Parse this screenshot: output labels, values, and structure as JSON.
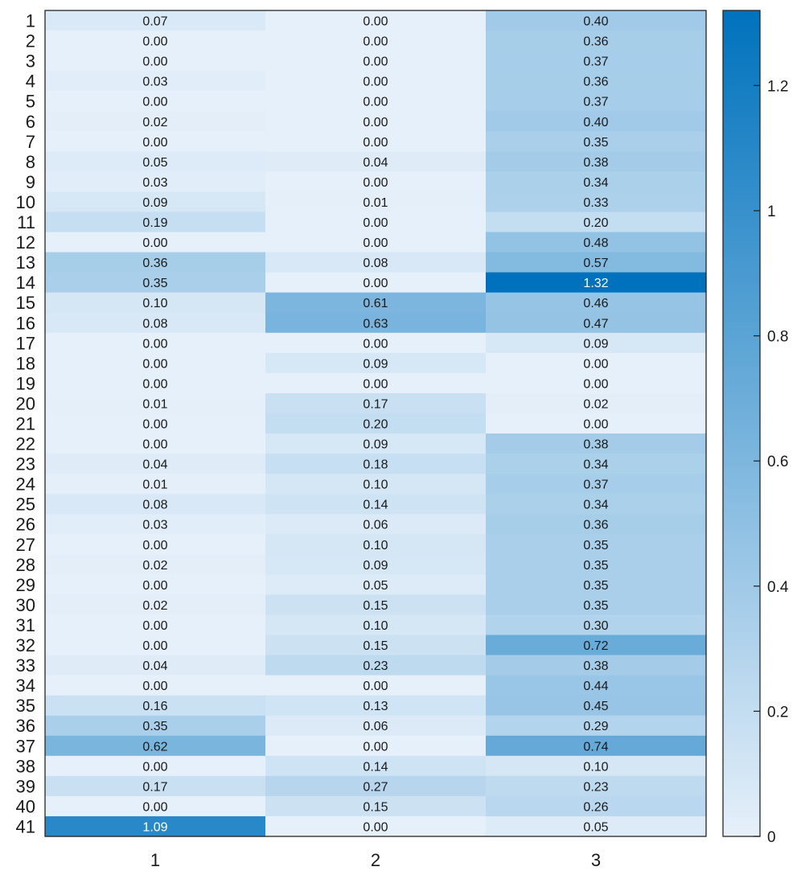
{
  "chart_data": {
    "type": "heatmap",
    "title": "",
    "xlabel": "",
    "ylabel": "",
    "x_categories": [
      "1",
      "2",
      "3"
    ],
    "y_categories": [
      "1",
      "2",
      "3",
      "4",
      "5",
      "6",
      "7",
      "8",
      "9",
      "10",
      "11",
      "12",
      "13",
      "14",
      "15",
      "16",
      "17",
      "18",
      "19",
      "20",
      "21",
      "22",
      "23",
      "24",
      "25",
      "26",
      "27",
      "28",
      "29",
      "30",
      "31",
      "32",
      "33",
      "34",
      "35",
      "36",
      "37",
      "38",
      "39",
      "40",
      "41"
    ],
    "values": [
      [
        0.07,
        0.0,
        0.4
      ],
      [
        0.0,
        0.0,
        0.36
      ],
      [
        0.0,
        0.0,
        0.37
      ],
      [
        0.03,
        0.0,
        0.36
      ],
      [
        0.0,
        0.0,
        0.37
      ],
      [
        0.02,
        0.0,
        0.4
      ],
      [
        0.0,
        0.0,
        0.35
      ],
      [
        0.05,
        0.04,
        0.38
      ],
      [
        0.03,
        0.0,
        0.34
      ],
      [
        0.09,
        0.01,
        0.33
      ],
      [
        0.19,
        0.0,
        0.2
      ],
      [
        0.0,
        0.0,
        0.48
      ],
      [
        0.36,
        0.08,
        0.57
      ],
      [
        0.35,
        0.0,
        1.32
      ],
      [
        0.1,
        0.61,
        0.46
      ],
      [
        0.08,
        0.63,
        0.47
      ],
      [
        0.0,
        0.0,
        0.09
      ],
      [
        0.0,
        0.09,
        0.0
      ],
      [
        0.0,
        0.0,
        0.0
      ],
      [
        0.01,
        0.17,
        0.02
      ],
      [
        0.0,
        0.2,
        0.0
      ],
      [
        0.0,
        0.09,
        0.38
      ],
      [
        0.04,
        0.18,
        0.34
      ],
      [
        0.01,
        0.1,
        0.37
      ],
      [
        0.08,
        0.14,
        0.34
      ],
      [
        0.03,
        0.06,
        0.36
      ],
      [
        0.0,
        0.1,
        0.35
      ],
      [
        0.02,
        0.09,
        0.35
      ],
      [
        0.0,
        0.05,
        0.35
      ],
      [
        0.02,
        0.15,
        0.35
      ],
      [
        0.0,
        0.1,
        0.3
      ],
      [
        0.0,
        0.15,
        0.72
      ],
      [
        0.04,
        0.23,
        0.38
      ],
      [
        0.0,
        0.0,
        0.44
      ],
      [
        0.16,
        0.13,
        0.45
      ],
      [
        0.35,
        0.06,
        0.29
      ],
      [
        0.62,
        0.0,
        0.74
      ],
      [
        0.0,
        0.14,
        0.1
      ],
      [
        0.17,
        0.27,
        0.23
      ],
      [
        0.0,
        0.15,
        0.26
      ],
      [
        1.09,
        0.0,
        0.05
      ]
    ],
    "color_range": [
      0,
      1.32
    ],
    "colormap": {
      "low": "#e6f0fa",
      "high": "#0072bd"
    },
    "label_text_dark": "#1a1a1a",
    "label_text_light": "#ffffff",
    "colorbar": {
      "ticks": [
        0,
        0.2,
        0.4,
        0.6,
        0.8,
        1,
        1.2
      ],
      "tick_labels": [
        "0",
        "0.2",
        "0.4",
        "0.6",
        "0.8",
        "1",
        "1.2"
      ]
    },
    "grid": false,
    "legend": "colorbar-right"
  }
}
